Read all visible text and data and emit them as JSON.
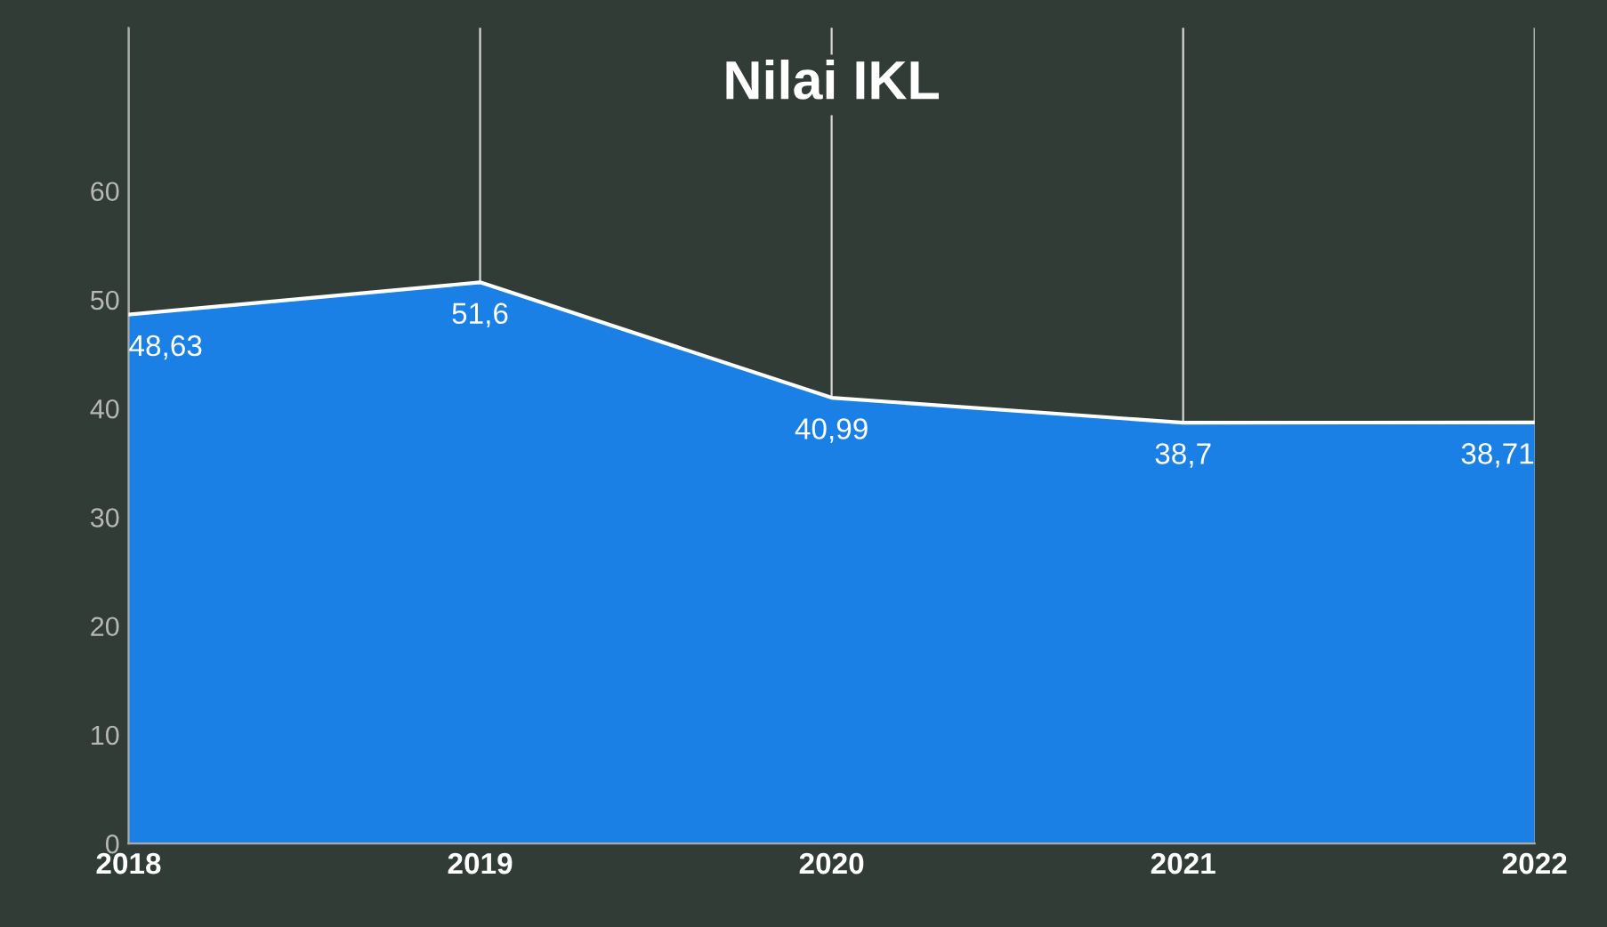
{
  "chart_data": {
    "type": "area",
    "title": "Nilai IKL",
    "categories": [
      "2018",
      "2019",
      "2020",
      "2021",
      "2022"
    ],
    "series": [
      {
        "color": "#1a80e6",
        "values": [
          48.63,
          51.6,
          40.99,
          38.7,
          38.71
        ],
        "value_labels": [
          "48,63",
          "51,6",
          "40,99",
          "38,7",
          "38,71"
        ]
      }
    ],
    "ylim": [
      0,
      75
    ],
    "yticks": [
      0,
      10,
      20,
      30,
      40,
      50,
      60
    ],
    "grid": "x"
  }
}
